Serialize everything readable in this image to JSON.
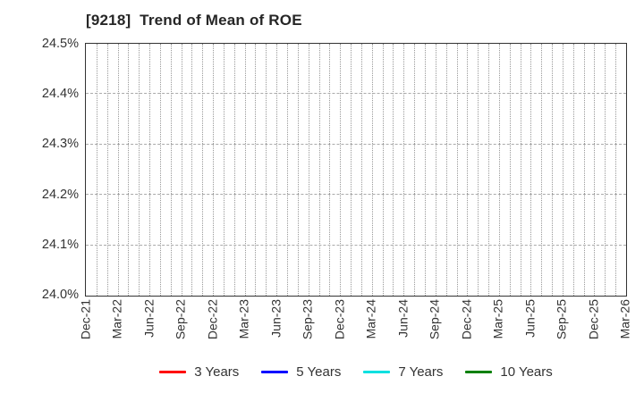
{
  "chart_data": {
    "type": "line",
    "title": "[9218]  Trend of Mean of ROE",
    "categories": [
      "Dec-21",
      "Mar-22",
      "Jun-22",
      "Sep-22",
      "Dec-22",
      "Mar-23",
      "Jun-23",
      "Sep-23",
      "Dec-23",
      "Mar-24",
      "Jun-24",
      "Sep-24",
      "Dec-24",
      "Mar-25",
      "Jun-25",
      "Sep-25",
      "Dec-25",
      "Mar-26"
    ],
    "series": [
      {
        "name": "3 Years",
        "color": "#ff0000",
        "values": []
      },
      {
        "name": "5 Years",
        "color": "#0000ff",
        "values": []
      },
      {
        "name": "7 Years",
        "color": "#00e0e0",
        "values": []
      },
      {
        "name": "10 Years",
        "color": "#008000",
        "values": []
      }
    ],
    "xlabel": "",
    "ylabel": "",
    "ylim": [
      24.0,
      24.5
    ],
    "yticks": [
      24.0,
      24.1,
      24.2,
      24.3,
      24.4,
      24.5
    ],
    "ytick_labels": [
      "24.0%",
      "24.1%",
      "24.2%",
      "24.3%",
      "24.4%",
      "24.5%"
    ],
    "grid": true,
    "minor_x_intervals_per_major": 3,
    "legend_position": "bottom"
  }
}
